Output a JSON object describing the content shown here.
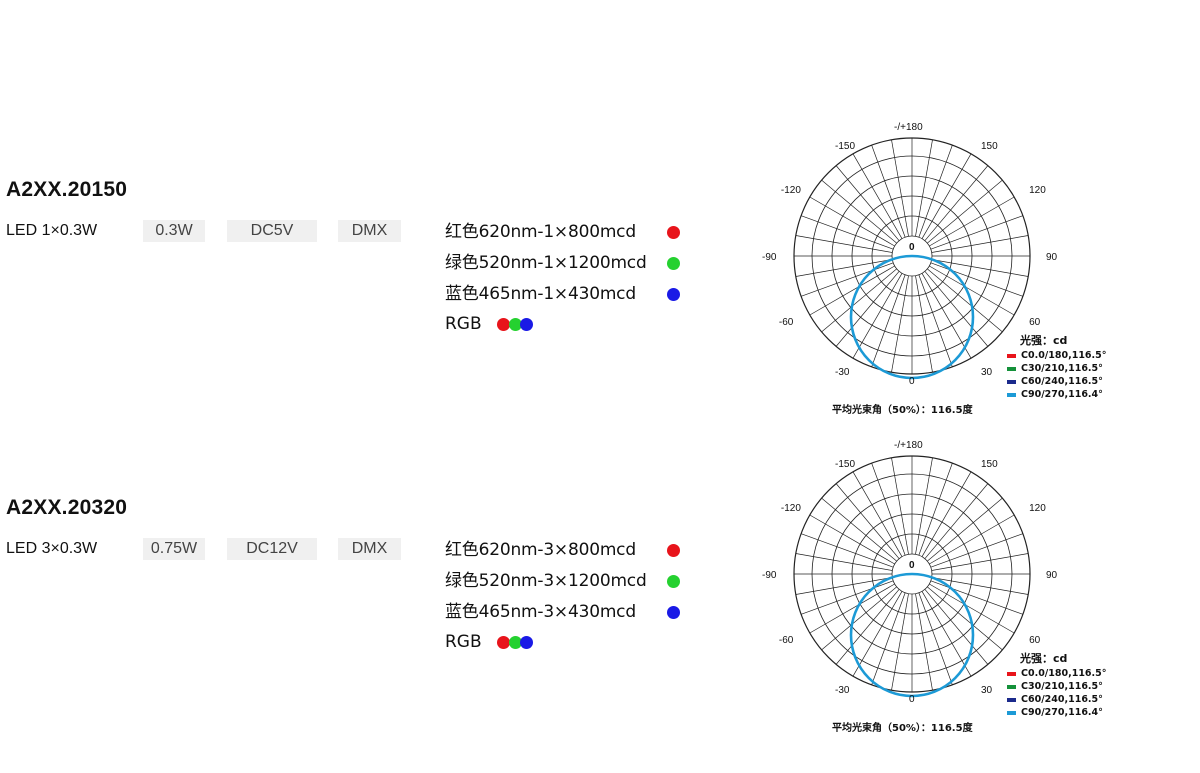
{
  "products": [
    {
      "model": "A2XX.20150",
      "led": "LED 1×0.3W",
      "power": "0.3W",
      "voltage": "DC5V",
      "control": "DMX",
      "colors": [
        {
          "label": "红色620nm-1×800mcd",
          "color": "#e8141b"
        },
        {
          "label": "绿色520nm-1×1200mcd",
          "color": "#25d130"
        },
        {
          "label": "蓝色465nm-1×430mcd",
          "color": "#1a1ae6"
        }
      ],
      "rgb_label": "RGB",
      "photometric": {
        "angle_top": "-/+180",
        "angles": [
          "-150",
          "150",
          "-120",
          "120",
          "-90",
          "90",
          "-60",
          "60",
          "-30",
          "30",
          "0"
        ],
        "center_label": "0",
        "legend_title": "光强：cd",
        "legend": [
          {
            "label": "C0.0/180,116.5°",
            "color": "#e8141b"
          },
          {
            "label": "C30/210,116.5°",
            "color": "#14913a"
          },
          {
            "label": "C60/240,116.5°",
            "color": "#1b2a8c"
          },
          {
            "label": "C90/270,116.4°",
            "color": "#1c9ad6"
          }
        ],
        "avg_beam_angle": "平均光束角（50%）：116.5度"
      }
    },
    {
      "model": "A2XX.20320",
      "led": "LED 3×0.3W",
      "power": "0.75W",
      "voltage": "DC12V",
      "control": "DMX",
      "colors": [
        {
          "label": "红色620nm-3×800mcd",
          "color": "#e8141b"
        },
        {
          "label": "绿色520nm-3×1200mcd",
          "color": "#25d130"
        },
        {
          "label": "蓝色465nm-3×430mcd",
          "color": "#1a1ae6"
        }
      ],
      "rgb_label": "RGB",
      "photometric": {
        "angle_top": "-/+180",
        "angles": [
          "-150",
          "150",
          "-120",
          "120",
          "-90",
          "90",
          "-60",
          "60",
          "-30",
          "30",
          "0"
        ],
        "center_label": "0",
        "legend_title": "光强：cd",
        "legend": [
          {
            "label": "C0.0/180,116.5°",
            "color": "#e8141b"
          },
          {
            "label": "C30/210,116.5°",
            "color": "#14913a"
          },
          {
            "label": "C60/240,116.5°",
            "color": "#1b2a8c"
          },
          {
            "label": "C90/270,116.4°",
            "color": "#1c9ad6"
          }
        ],
        "avg_beam_angle": "平均光束角（50%）：116.5度"
      }
    }
  ]
}
